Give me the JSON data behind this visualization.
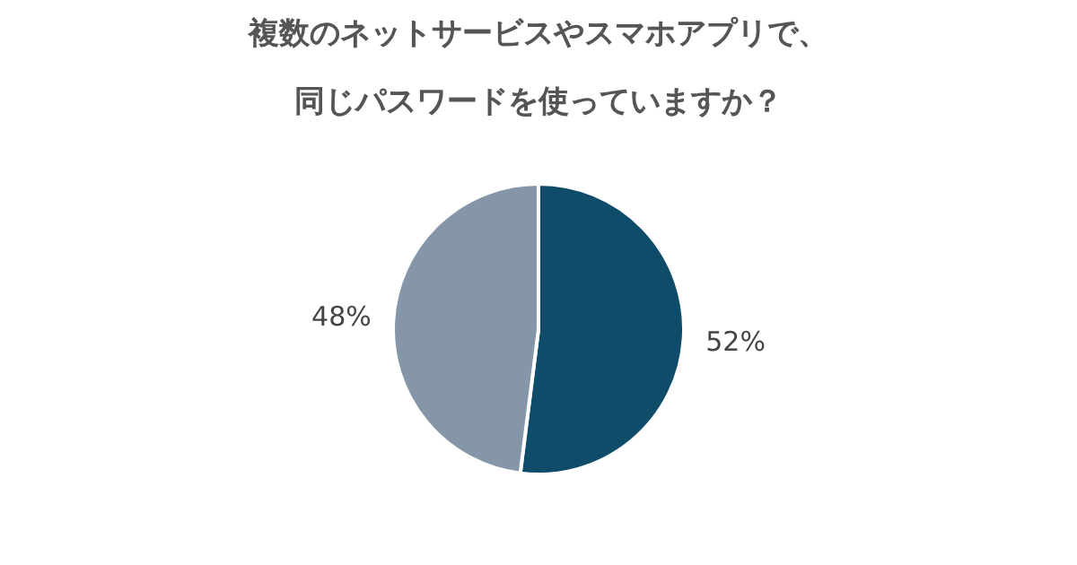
{
  "chart_data": {
    "type": "pie",
    "title": "複数のネットサービスやスマホアプリで、同じパスワードを使っていますか？",
    "categories": [
      null,
      null
    ],
    "values": [
      52,
      48
    ],
    "value_labels": [
      "52%",
      "48%"
    ],
    "colors": [
      "#0f4c6a",
      "#8496a8"
    ],
    "legend": false
  }
}
